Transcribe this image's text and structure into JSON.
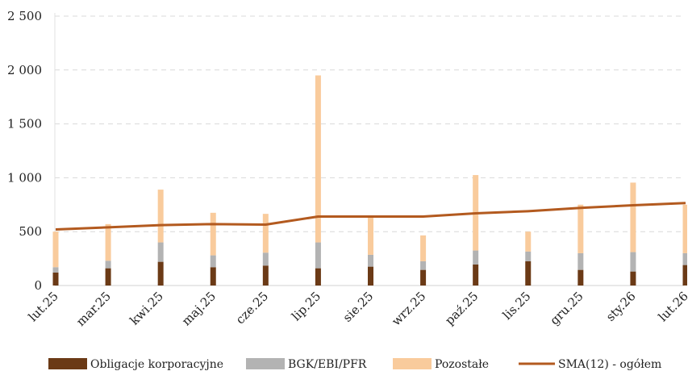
{
  "chart_data": {
    "type": "bar",
    "stacked": true,
    "categories": [
      "lut.25",
      "mar.25",
      "kwi.25",
      "maj.25",
      "cze.25",
      "lip.25",
      "sie.25",
      "wrz.25",
      "paź.25",
      "lis.25",
      "gru.25",
      "sty.26",
      "lut.26"
    ],
    "series": [
      {
        "name": "Obligacje korporacyjne",
        "kind": "bar",
        "color": "#6b3a16",
        "values": [
          120,
          160,
          220,
          170,
          185,
          160,
          175,
          145,
          195,
          225,
          145,
          130,
          190
        ]
      },
      {
        "name": "BGK/EBI/PFR",
        "kind": "bar",
        "color": "#b3b3b3",
        "values": [
          50,
          70,
          180,
          110,
          120,
          240,
          110,
          80,
          130,
          90,
          155,
          180,
          110
        ]
      },
      {
        "name": "Pozostałe",
        "kind": "bar",
        "color": "#f9cb9c",
        "values": [
          330,
          340,
          490,
          395,
          360,
          1550,
          355,
          240,
          700,
          185,
          450,
          645,
          450
        ]
      },
      {
        "name": "SMA(12) - ogółem",
        "kind": "line",
        "color": "#b35a1f",
        "values": [
          520,
          540,
          560,
          570,
          565,
          640,
          640,
          640,
          670,
          690,
          720,
          745,
          765
        ]
      }
    ],
    "ylim": [
      0,
      2500
    ],
    "yticks": [
      "0",
      "500",
      "1 000",
      "1 500",
      "2 000",
      "2 500"
    ],
    "ytick_values": [
      0,
      500,
      1000,
      1500,
      2000,
      2500
    ],
    "grid": true,
    "legend_position": "bottom",
    "title": "",
    "xlabel": "",
    "ylabel": ""
  }
}
